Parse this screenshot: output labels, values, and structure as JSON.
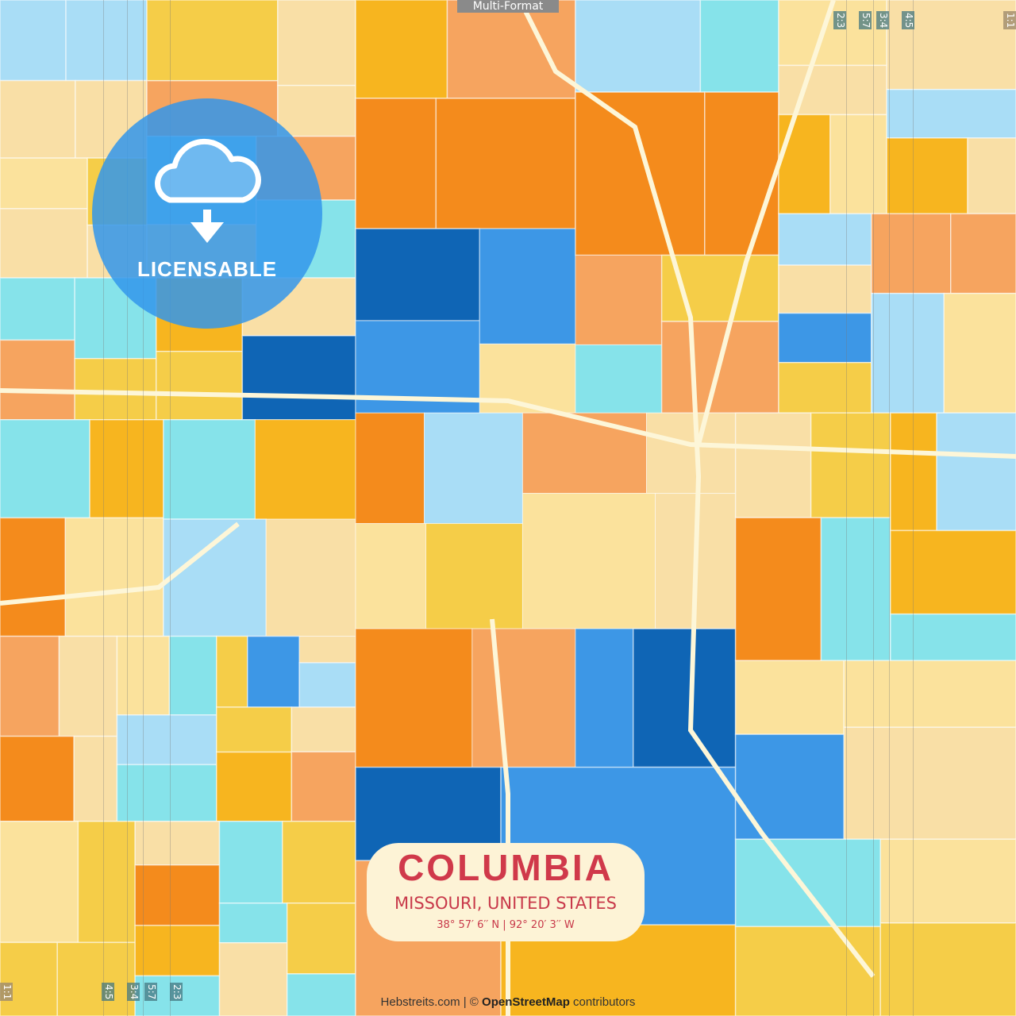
{
  "header": {
    "format_tab": "Multi-Format"
  },
  "ratio_marks": {
    "top": [
      "2:3",
      "5:7",
      "3:4",
      "4:5",
      "1:1"
    ],
    "bottom": [
      "1:1",
      "4:5",
      "3:4",
      "5:7",
      "2:3"
    ]
  },
  "badge": {
    "label": "LICENSABLE",
    "icon": "cloud-download-icon"
  },
  "poster": {
    "city": "COLUMBIA",
    "region": "MISSOURI, UNITED STATES",
    "coordinates": "38°  57′  6′′ N  |  92°  20′  3′′ W"
  },
  "credit": {
    "site": "Hebstreits.com",
    "separator": " | © ",
    "osm": "OpenStreetMap",
    "suffix": " contributors"
  },
  "palette": [
    "#0f65b5",
    "#3d97e6",
    "#a9ddf6",
    "#86e3ea",
    "#f5cd48",
    "#f7b51f",
    "#fbe29c",
    "#f48b1c",
    "#f6a45f",
    "#f9dfa6"
  ]
}
